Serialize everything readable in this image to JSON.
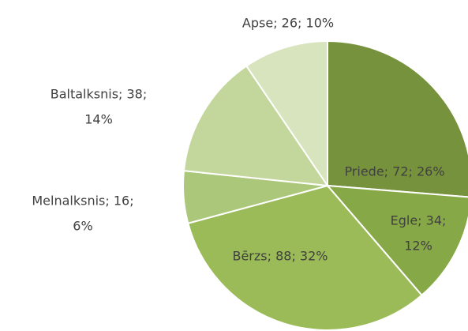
{
  "chart_data": {
    "type": "pie",
    "categories": [
      "Priede",
      "Egle",
      "Bērzs",
      "Melnalksnis",
      "Baltalksnis",
      "Apse"
    ],
    "values": [
      72,
      34,
      88,
      16,
      38,
      26
    ],
    "value_labels": [
      [
        "Priede; 72; 26%"
      ],
      [
        "Egle; 34;",
        "12%"
      ],
      [
        "Bērzs; 88; 32%"
      ],
      [
        "Melnalksnis; 16;",
        "6%"
      ],
      [
        "Baltalksnis; 38;",
        "14%"
      ],
      [
        "Apse; 26; 10%"
      ]
    ],
    "colors": [
      "#76923c",
      "#86a846",
      "#9bbb59",
      "#abc77a",
      "#c3d69b",
      "#d7e4bd"
    ]
  }
}
